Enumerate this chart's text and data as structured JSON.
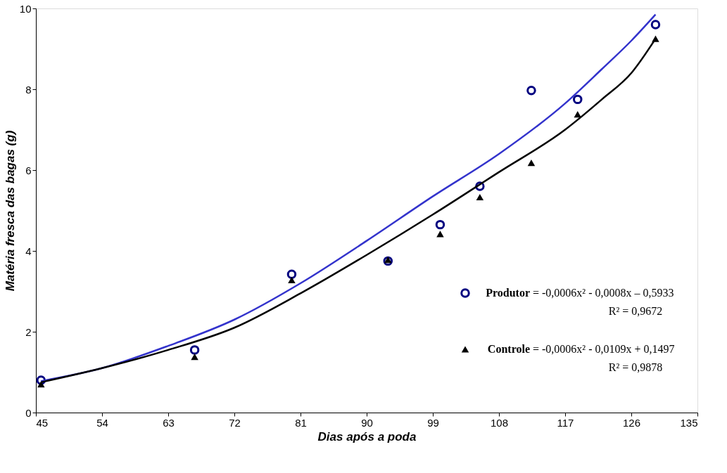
{
  "chart_data": {
    "type": "scatter",
    "xlabel": "Dias após a poda",
    "ylabel": "Matéria fresca das bagas (g)",
    "xlim": [
      45,
      135
    ],
    "xticks": [
      45,
      54,
      63,
      72,
      81,
      90,
      99,
      108,
      117,
      126,
      135
    ],
    "ylim": [
      0,
      10
    ],
    "yticks": [
      0,
      2,
      4,
      6,
      8,
      10
    ],
    "grid": false,
    "legend": "bottom right",
    "annotations": [
      "= -0,0006x² - 0,0008x – 0,5933",
      "R² = 0,9672",
      "= -0,0006x² - 0,0109x + 0,1497",
      "R² = 0,9878"
    ],
    "series": [
      {
        "name": "Produtor",
        "marker": "circle",
        "color": "#000080",
        "x": [
          45.7,
          66.6,
          79.8,
          92.9,
          100,
          105.4,
          112.4,
          118.7,
          129.3
        ],
        "values": [
          0.8,
          1.55,
          3.42,
          3.75,
          4.65,
          5.6,
          7.97,
          7.75,
          9.6
        ]
      },
      {
        "name": "Controle",
        "marker": "triangle",
        "color": "#000000",
        "x": [
          45.7,
          66.6,
          79.8,
          92.9,
          100,
          105.4,
          112.4,
          118.7,
          129.3
        ],
        "values": [
          0.7,
          1.38,
          3.28,
          3.78,
          4.42,
          5.33,
          6.18,
          7.38,
          9.25
        ]
      },
      {
        "type": "line",
        "marker": "none",
        "line_style": "solid",
        "color": "#3333cc",
        "x": [
          45.7,
          54,
          63,
          72,
          81,
          90,
          99,
          108,
          117,
          122,
          126,
          129.3
        ],
        "values": [
          0.78,
          1.1,
          1.65,
          2.3,
          3.2,
          4.25,
          5.35,
          6.4,
          7.65,
          8.5,
          9.2,
          9.85
        ]
      },
      {
        "type": "line",
        "marker": "none",
        "line_style": "solid",
        "color": "#000000",
        "x": [
          45.7,
          54,
          63,
          72,
          81,
          90,
          99,
          108,
          117,
          122,
          126,
          129.3
        ],
        "values": [
          0.75,
          1.1,
          1.55,
          2.1,
          2.95,
          3.9,
          4.9,
          5.95,
          7.0,
          7.75,
          8.4,
          9.25
        ]
      }
    ]
  }
}
